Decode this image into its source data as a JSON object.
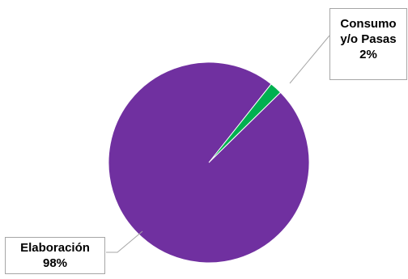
{
  "chart_data": {
    "type": "pie",
    "title": "",
    "slices": [
      {
        "name": "Elaboración",
        "value": 98,
        "label": "98%",
        "color": "#7030a0"
      },
      {
        "name": "Consumo y/o Pasas",
        "value": 2,
        "label": "2%",
        "color": "#00b050"
      }
    ],
    "legend": "none",
    "data_labels": "callout boxes with leader lines"
  },
  "labels": {
    "elaboracion_name": "Elaboración",
    "elaboracion_pct": "98%",
    "consumo_name_line1": "Consumo",
    "consumo_name_line2": "y/o Pasas",
    "consumo_pct": "2%"
  }
}
